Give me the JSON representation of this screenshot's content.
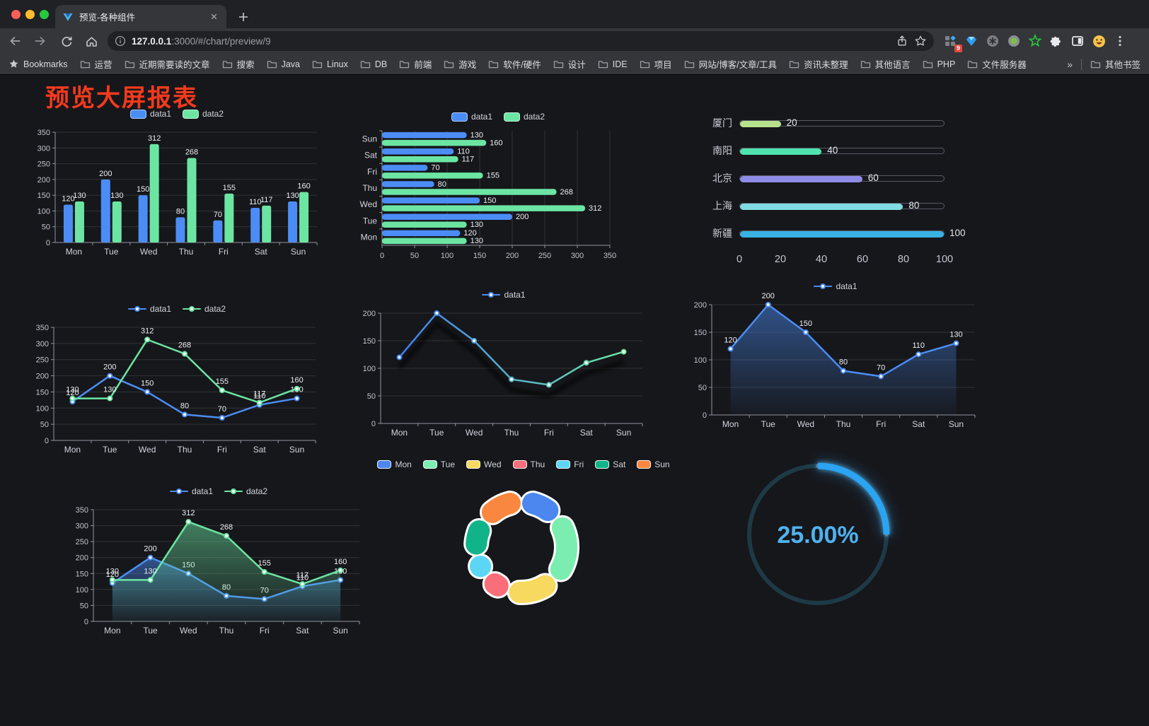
{
  "browser": {
    "tab": {
      "title": "预览-各种组件"
    },
    "url": {
      "host": "127.0.0.1",
      "rest": ":3000/#/chart/preview/9"
    },
    "extensions_badge": "9",
    "bookmarks": {
      "bar_label": "Bookmarks",
      "items": [
        "运营",
        "近期需要读的文章",
        "搜索",
        "Java",
        "Linux",
        "DB",
        "前端",
        "游戏",
        "软件/硬件",
        "设计",
        "IDE",
        "项目",
        "网站/博客/文章/工具",
        "资讯未整理",
        "其他语言",
        "PHP",
        "文件服务器"
      ],
      "overflow": "»",
      "other": "其他书签"
    }
  },
  "page": {
    "title": "预览大屏报表"
  },
  "palette": {
    "data1": "#4b8df5",
    "data2": "#6ce5a3",
    "axis_text": "#c2c4cd",
    "axis_line": "#9296a1",
    "grid": "rgba(255,255,255,0.12)",
    "value_label": "#eceef2",
    "title_red": "#f43a1d"
  },
  "chart_data": [
    {
      "id": "bar-vertical",
      "type": "bar",
      "categories": [
        "Mon",
        "Tue",
        "Wed",
        "Thu",
        "Fri",
        "Sat",
        "Sun"
      ],
      "series": [
        {
          "name": "data1",
          "color": "#4b8df5",
          "values": [
            120,
            200,
            150,
            80,
            70,
            110,
            130
          ]
        },
        {
          "name": "data2",
          "color": "#6ce5a3",
          "values": [
            130,
            130,
            312,
            268,
            155,
            117,
            160
          ]
        }
      ],
      "ylim": [
        0,
        350
      ],
      "ystep": 50,
      "legend_position": "top",
      "grid": true
    },
    {
      "id": "bar-horizontal",
      "type": "bar",
      "orientation": "horizontal",
      "display_order": "Sun-at-top",
      "categories": [
        "Mon",
        "Tue",
        "Wed",
        "Thu",
        "Fri",
        "Sat",
        "Sun"
      ],
      "series": [
        {
          "name": "data1",
          "color": "#4b8df5",
          "values": [
            120,
            200,
            150,
            80,
            70,
            110,
            130
          ]
        },
        {
          "name": "data2",
          "color": "#6ce5a3",
          "values": [
            130,
            130,
            312,
            268,
            155,
            117,
            160
          ]
        }
      ],
      "xlim": [
        0,
        350
      ],
      "xstep": 50,
      "legend_position": "top",
      "grid": true
    },
    {
      "id": "city-progress",
      "type": "bar",
      "subtype": "progress-capsule",
      "xlim": [
        0,
        100
      ],
      "ticks": [
        0,
        20,
        40,
        60,
        80,
        100
      ],
      "items": [
        {
          "label": "厦门",
          "value": 20,
          "color": "#b7e28d"
        },
        {
          "label": "南阳",
          "value": 40,
          "color": "#4fe3b0"
        },
        {
          "label": "北京",
          "value": 60,
          "color": "#8f8ce8"
        },
        {
          "label": "上海",
          "value": 80,
          "color": "#7fdce3"
        },
        {
          "label": "新疆",
          "value": 100,
          "color": "#38b1e3"
        }
      ]
    },
    {
      "id": "line-basic",
      "type": "line",
      "categories": [
        "Mon",
        "Tue",
        "Wed",
        "Thu",
        "Fri",
        "Sat",
        "Sun"
      ],
      "series": [
        {
          "name": "data1",
          "color": "#4b8df5",
          "values": [
            120,
            200,
            150,
            80,
            70,
            110,
            130
          ]
        },
        {
          "name": "data2",
          "color": "#6ce5a3",
          "values": [
            130,
            130,
            312,
            268,
            155,
            117,
            160
          ]
        }
      ],
      "ylim": [
        0,
        350
      ],
      "ystep": 50,
      "labels": true,
      "legend_position": "top"
    },
    {
      "id": "line-gradient",
      "type": "line",
      "categories": [
        "Mon",
        "Tue",
        "Wed",
        "Thu",
        "Fri",
        "Sat",
        "Sun"
      ],
      "series": [
        {
          "name": "data1",
          "color": "#4b8df5",
          "values": [
            120,
            200,
            150,
            80,
            70,
            110,
            130
          ]
        }
      ],
      "line_gradient": [
        "#3f7ef2",
        "#6ce5a3"
      ],
      "ylim": [
        0,
        200
      ],
      "ystep": 50,
      "labels": false,
      "shadow": true,
      "legend_position": "top"
    },
    {
      "id": "area-single",
      "type": "area",
      "categories": [
        "Mon",
        "Tue",
        "Wed",
        "Thu",
        "Fri",
        "Sat",
        "Sun"
      ],
      "series": [
        {
          "name": "data1",
          "color": "#4b8df5",
          "values": [
            120,
            200,
            150,
            80,
            70,
            110,
            130
          ],
          "area": true
        }
      ],
      "ylim": [
        0,
        200
      ],
      "ystep": 50,
      "labels": true,
      "legend_position": "top"
    },
    {
      "id": "area-double",
      "type": "area",
      "categories": [
        "Mon",
        "Tue",
        "Wed",
        "Thu",
        "Fri",
        "Sat",
        "Sun"
      ],
      "series": [
        {
          "name": "data1",
          "color": "#4b8df5",
          "values": [
            120,
            200,
            150,
            80,
            70,
            110,
            130
          ],
          "area": true
        },
        {
          "name": "data2",
          "color": "#6ce5a3",
          "values": [
            130,
            130,
            312,
            268,
            155,
            117,
            160
          ],
          "area": true
        }
      ],
      "ylim": [
        0,
        350
      ],
      "ystep": 50,
      "labels": true,
      "legend_position": "top"
    },
    {
      "id": "donut",
      "type": "pie",
      "inner_radius_ratio": 0.61,
      "start": "top-clockwise",
      "labels": [
        "Mon",
        "Tue",
        "Wed",
        "Thu",
        "Fri",
        "Sat",
        "Sun"
      ],
      "values": [
        120,
        200,
        150,
        80,
        70,
        110,
        130
      ],
      "colors": [
        "#4b87ee",
        "#7cedb0",
        "#f7d95f",
        "#fa6e79",
        "#5bd6f5",
        "#10b488",
        "#f9873f"
      ],
      "border_color": "#ffffff",
      "legend_position": "top"
    },
    {
      "id": "gauge",
      "type": "gauge",
      "value": 25,
      "display": "25.00%",
      "color": "#2ba4f2",
      "track": "#1d3a46",
      "text_color": "#4fb2f0"
    }
  ]
}
